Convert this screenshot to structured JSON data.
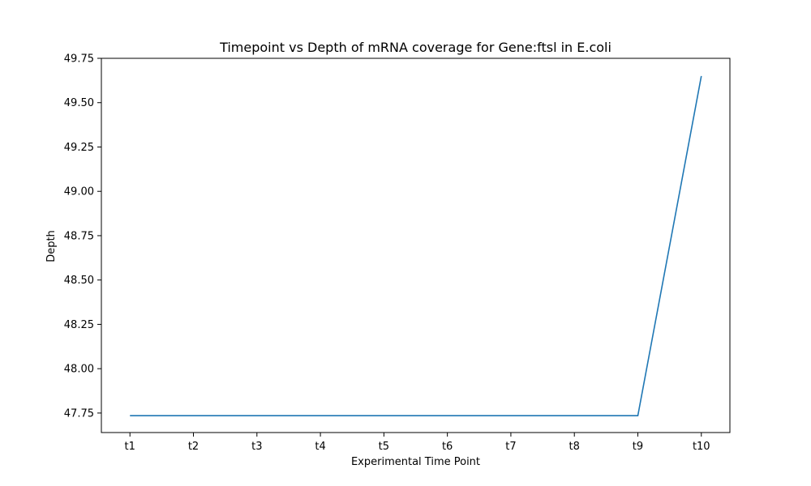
{
  "chart_data": {
    "type": "line",
    "title": "Timepoint vs Depth of mRNA coverage for Gene:ftsl in E.coli",
    "xlabel": "Experimental Time Point",
    "ylabel": "Depth",
    "categories": [
      "t1",
      "t2",
      "t3",
      "t4",
      "t5",
      "t6",
      "t7",
      "t8",
      "t9",
      "t10"
    ],
    "series": [
      {
        "values": [
          47.735,
          47.735,
          47.735,
          47.735,
          47.735,
          47.735,
          47.735,
          47.735,
          47.735,
          49.65
        ]
      }
    ],
    "ylim": [
      47.64,
      49.75
    ],
    "yticks": [
      47.75,
      48.0,
      48.25,
      48.5,
      48.75,
      49.0,
      49.25,
      49.5,
      49.75
    ],
    "ytick_labels": [
      "47.75",
      "48.00",
      "48.25",
      "48.50",
      "48.75",
      "49.00",
      "49.25",
      "49.50",
      "49.75"
    ],
    "grid": false,
    "legend": "none",
    "line_color": "#1f77b4"
  }
}
